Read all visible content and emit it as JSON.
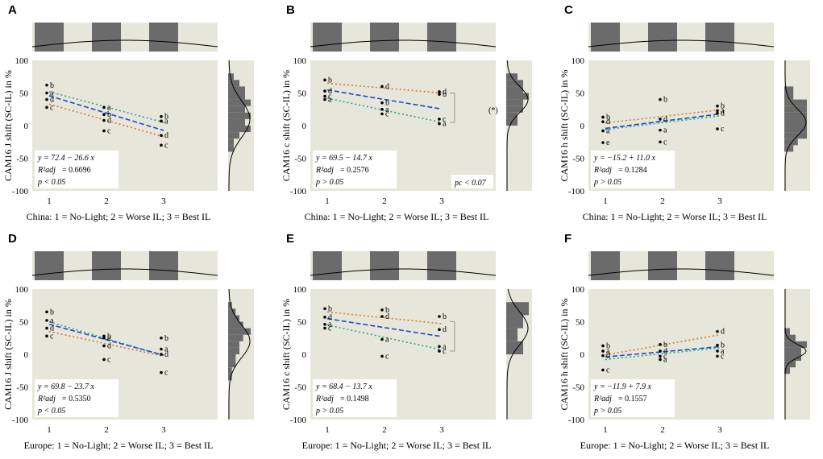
{
  "figure": {
    "colors": {
      "panel_bg": "#e6e6da",
      "hist_bar": "#6b6b6b",
      "series_a": "#2ca58d",
      "series_c": "#d9792b",
      "mean_line": "#2348c8",
      "point": "#000000"
    }
  },
  "chart_data": [
    {
      "id": "A",
      "type": "scatter",
      "ylabel": "CAM16 J shift (SC-IL) in %",
      "xlabel": "China: 1 = No-Light; 2 = Worse IL; 3 = Best IL",
      "ylim": [
        -100,
        100
      ],
      "yticks": [
        -100,
        -50,
        0,
        50,
        100
      ],
      "xticks": [
        1,
        2,
        3
      ],
      "points": [
        {
          "x": 1,
          "y": 62,
          "label": "b"
        },
        {
          "x": 1,
          "y": 50,
          "label": "a"
        },
        {
          "x": 1,
          "y": 40,
          "label": "d"
        },
        {
          "x": 1,
          "y": 28,
          "label": "c"
        },
        {
          "x": 2,
          "y": 28,
          "label": "a"
        },
        {
          "x": 2,
          "y": 17,
          "label": "b"
        },
        {
          "x": 2,
          "y": 8,
          "label": "d"
        },
        {
          "x": 2,
          "y": -8,
          "label": "c"
        },
        {
          "x": 3,
          "y": 14,
          "label": "b"
        },
        {
          "x": 3,
          "y": 7,
          "label": "a"
        },
        {
          "x": 3,
          "y": -15,
          "label": "d"
        },
        {
          "x": 3,
          "y": -30,
          "label": "c"
        }
      ],
      "trend_lines": [
        {
          "name": "a",
          "y1": 52,
          "y3": 5
        },
        {
          "name": "c",
          "y1": 33,
          "y3": -17
        }
      ],
      "fit": {
        "intercept": 72.4,
        "slope": -26.6
      },
      "eq_line1": "y = 72.4 − 26.6 x",
      "eq_r2_label": "R²adj",
      "eq_r2_value": "= 0.6696",
      "eq_p": "p < 0.05",
      "hist_bins": [
        {
          "lo": 70,
          "hi": 80,
          "count": 1
        },
        {
          "lo": 60,
          "hi": 70,
          "count": 2
        },
        {
          "lo": 50,
          "hi": 60,
          "count": 3
        },
        {
          "lo": 40,
          "hi": 50,
          "count": 3
        },
        {
          "lo": 30,
          "hi": 40,
          "count": 4
        },
        {
          "lo": 20,
          "hi": 30,
          "count": 3
        },
        {
          "lo": 10,
          "hi": 20,
          "count": 4
        },
        {
          "lo": 0,
          "hi": 10,
          "count": 3
        },
        {
          "lo": -10,
          "hi": 0,
          "count": 4
        },
        {
          "lo": -20,
          "hi": -10,
          "count": 2
        },
        {
          "lo": -30,
          "hi": -20,
          "count": 1
        },
        {
          "lo": -40,
          "hi": -30,
          "count": 1
        }
      ],
      "density": {
        "mean": 10,
        "sd": 28,
        "peak": 1.0
      }
    },
    {
      "id": "B",
      "type": "scatter",
      "ylabel": "CAM16 c shift (SC-IL) in %",
      "xlabel": "China: 1 = No-Light; 2 = Worse IL; 3 = Best IL",
      "ylim": [
        -100,
        100
      ],
      "yticks": [
        -100,
        -50,
        0,
        50,
        100
      ],
      "xticks": [
        1,
        2,
        3
      ],
      "points": [
        {
          "x": 1,
          "y": 70,
          "label": "b"
        },
        {
          "x": 1,
          "y": 53,
          "label": "d"
        },
        {
          "x": 1,
          "y": 45,
          "label": "c"
        },
        {
          "x": 1,
          "y": 40,
          "label": "a"
        },
        {
          "x": 2,
          "y": 60,
          "label": "d"
        },
        {
          "x": 2,
          "y": 35,
          "label": "b"
        },
        {
          "x": 2,
          "y": 25,
          "label": "a"
        },
        {
          "x": 2,
          "y": 18,
          "label": "c"
        },
        {
          "x": 3,
          "y": 52,
          "label": "d"
        },
        {
          "x": 3,
          "y": 48,
          "label": "b"
        },
        {
          "x": 3,
          "y": 10,
          "label": "c"
        },
        {
          "x": 3,
          "y": 3,
          "label": "a"
        }
      ],
      "trend_lines": [
        {
          "name": "c",
          "y1": 65,
          "y3": 50
        },
        {
          "name": "a",
          "y1": 42,
          "y3": 5
        }
      ],
      "fit": {
        "intercept": 69.5,
        "slope": -14.7
      },
      "eq_line1": "y = 69.5 − 14.7 x",
      "eq_r2_label": "R²adj",
      "eq_r2_value": "= 0.2576",
      "eq_p": "p > 0.05",
      "annotation_pc": "pc < 0.07",
      "annotation_star": "(*)",
      "hist_bins": [
        {
          "lo": 70,
          "hi": 80,
          "count": 2
        },
        {
          "lo": 60,
          "hi": 70,
          "count": 3
        },
        {
          "lo": 50,
          "hi": 60,
          "count": 3
        },
        {
          "lo": 40,
          "hi": 50,
          "count": 4
        },
        {
          "lo": 30,
          "hi": 40,
          "count": 3
        },
        {
          "lo": 20,
          "hi": 30,
          "count": 3
        },
        {
          "lo": 10,
          "hi": 20,
          "count": 2
        },
        {
          "lo": 0,
          "hi": 10,
          "count": 2
        }
      ],
      "density": {
        "mean": 40,
        "sd": 20,
        "peak": 1.0
      }
    },
    {
      "id": "C",
      "type": "scatter",
      "ylabel": "CAM16 h shift (SC-IL) in %",
      "xlabel": "China: 1 = No-Light; 2 = Worse IL; 3 = Best IL",
      "ylim": [
        -100,
        100
      ],
      "yticks": [
        -100,
        -50,
        0,
        50,
        100
      ],
      "xticks": [
        1,
        2,
        3
      ],
      "points": [
        {
          "x": 1,
          "y": 13,
          "label": "b"
        },
        {
          "x": 1,
          "y": 6,
          "label": "d"
        },
        {
          "x": 1,
          "y": -8,
          "label": "a"
        },
        {
          "x": 1,
          "y": -26,
          "label": "e"
        },
        {
          "x": 2,
          "y": 40,
          "label": "b"
        },
        {
          "x": 2,
          "y": 10,
          "label": "d"
        },
        {
          "x": 2,
          "y": -7,
          "label": "a"
        },
        {
          "x": 2,
          "y": -25,
          "label": "c"
        },
        {
          "x": 3,
          "y": 30,
          "label": "b"
        },
        {
          "x": 3,
          "y": 23,
          "label": "a"
        },
        {
          "x": 3,
          "y": 19,
          "label": "d"
        },
        {
          "x": 3,
          "y": -5,
          "label": "c"
        }
      ],
      "trend_lines": [
        {
          "name": "c",
          "y1": 4,
          "y3": 24
        },
        {
          "name": "a",
          "y1": -6,
          "y3": 15
        }
      ],
      "fit": {
        "intercept": -15.2,
        "slope": 11.0
      },
      "eq_line1": "y = −15.2 + 11.0 x",
      "eq_r2_label": "R²adj",
      "eq_r2_value": "= 0.1284",
      "eq_p": "p > 0.05",
      "hist_bins": [
        {
          "lo": 50,
          "hi": 60,
          "count": 2
        },
        {
          "lo": 40,
          "hi": 50,
          "count": 2
        },
        {
          "lo": 30,
          "hi": 40,
          "count": 5
        },
        {
          "lo": 20,
          "hi": 30,
          "count": 5
        },
        {
          "lo": 10,
          "hi": 20,
          "count": 5
        },
        {
          "lo": 0,
          "hi": 10,
          "count": 5
        },
        {
          "lo": -10,
          "hi": 0,
          "count": 5
        },
        {
          "lo": -20,
          "hi": -10,
          "count": 5
        },
        {
          "lo": -30,
          "hi": -20,
          "count": 3
        },
        {
          "lo": -40,
          "hi": -30,
          "count": 2
        }
      ],
      "density": {
        "mean": 5,
        "sd": 20,
        "peak": 1.0
      }
    },
    {
      "id": "D",
      "type": "scatter",
      "ylabel": "CAM16 J shift (SC-IL) in %",
      "xlabel": "Europe: 1 = No-Light; 2 = Worse IL; 3 = Best IL",
      "ylim": [
        -100,
        100
      ],
      "yticks": [
        -100,
        -50,
        0,
        50,
        100
      ],
      "xticks": [
        1,
        2,
        3
      ],
      "points": [
        {
          "x": 1,
          "y": 65,
          "label": "b"
        },
        {
          "x": 1,
          "y": 52,
          "label": "a"
        },
        {
          "x": 1,
          "y": 40,
          "label": "d"
        },
        {
          "x": 1,
          "y": 28,
          "label": "c"
        },
        {
          "x": 2,
          "y": 28,
          "label": "b"
        },
        {
          "x": 2,
          "y": 25,
          "label": "a"
        },
        {
          "x": 2,
          "y": 13,
          "label": "d"
        },
        {
          "x": 2,
          "y": -8,
          "label": "c"
        },
        {
          "x": 3,
          "y": 25,
          "label": "b"
        },
        {
          "x": 3,
          "y": 8,
          "label": "a"
        },
        {
          "x": 3,
          "y": 0,
          "label": "d"
        },
        {
          "x": 3,
          "y": -28,
          "label": "c"
        }
      ],
      "trend_lines": [
        {
          "name": "a",
          "y1": 50,
          "y3": -2
        },
        {
          "name": "c",
          "y1": 35,
          "y3": -3
        }
      ],
      "fit": {
        "intercept": 69.8,
        "slope": -23.7
      },
      "eq_line1": "y = 69.8 − 23.7 x",
      "eq_r2_label": "R²adj",
      "eq_r2_value": "= 0.5350",
      "eq_p": "p < 0.05",
      "hist_bins": [
        {
          "lo": 70,
          "hi": 80,
          "count": 1
        },
        {
          "lo": 60,
          "hi": 70,
          "count": 2
        },
        {
          "lo": 50,
          "hi": 60,
          "count": 3
        },
        {
          "lo": 40,
          "hi": 50,
          "count": 4
        },
        {
          "lo": 30,
          "hi": 40,
          "count": 6
        },
        {
          "lo": 20,
          "hi": 30,
          "count": 4
        },
        {
          "lo": 10,
          "hi": 20,
          "count": 3
        },
        {
          "lo": 0,
          "hi": 10,
          "count": 3
        },
        {
          "lo": -10,
          "hi": 0,
          "count": 2
        },
        {
          "lo": -20,
          "hi": -10,
          "count": 2
        },
        {
          "lo": -30,
          "hi": -20,
          "count": 1
        },
        {
          "lo": -40,
          "hi": -30,
          "count": 1
        }
      ],
      "density": {
        "mean": 20,
        "sd": 25,
        "peak": 1.0
      }
    },
    {
      "id": "E",
      "type": "scatter",
      "ylabel": "CAM16 c shift (SC-IL) in %",
      "xlabel": "Europe: 1 = No-Light; 2 = Worse IL; 3 = Best IL",
      "ylim": [
        -100,
        100
      ],
      "yticks": [
        -100,
        -50,
        0,
        50,
        100
      ],
      "xticks": [
        1,
        2,
        3
      ],
      "points": [
        {
          "x": 1,
          "y": 70,
          "label": "b"
        },
        {
          "x": 1,
          "y": 57,
          "label": "d"
        },
        {
          "x": 1,
          "y": 46,
          "label": "a"
        },
        {
          "x": 1,
          "y": 40,
          "label": "c"
        },
        {
          "x": 2,
          "y": 68,
          "label": "b"
        },
        {
          "x": 2,
          "y": 58,
          "label": "d"
        },
        {
          "x": 2,
          "y": 23,
          "label": "a"
        },
        {
          "x": 2,
          "y": -3,
          "label": "c"
        },
        {
          "x": 3,
          "y": 58,
          "label": "b"
        },
        {
          "x": 3,
          "y": 38,
          "label": "d"
        },
        {
          "x": 3,
          "y": 12,
          "label": "a"
        },
        {
          "x": 3,
          "y": 5,
          "label": "c"
        }
      ],
      "trend_lines": [
        {
          "name": "c",
          "y1": 65,
          "y3": 47
        },
        {
          "name": "a",
          "y1": 45,
          "y3": 7
        }
      ],
      "fit": {
        "intercept": 68.4,
        "slope": -13.7
      },
      "eq_line1": "y = 68.4 − 13.7 x",
      "eq_r2_label": "R²adj",
      "eq_r2_value": "= 0.1498",
      "eq_p": "p > 0.05",
      "hist_bins": [
        {
          "lo": 60,
          "hi": 80,
          "count": 4
        },
        {
          "lo": 40,
          "hi": 60,
          "count": 3
        },
        {
          "lo": 20,
          "hi": 40,
          "count": 2
        },
        {
          "lo": 0,
          "hi": 20,
          "count": 3
        }
      ],
      "density": {
        "mean": 40,
        "sd": 25,
        "peak": 1.0
      }
    },
    {
      "id": "F",
      "type": "scatter",
      "ylabel": "CAM16 h shift (SC-IL) in %",
      "xlabel": "Europe: 1 = No-Light; 2 = Worse IL; 3 = Best IL",
      "ylim": [
        -100,
        100
      ],
      "yticks": [
        -100,
        -50,
        0,
        50,
        100
      ],
      "xticks": [
        1,
        2,
        3
      ],
      "points": [
        {
          "x": 1,
          "y": 13,
          "label": "b"
        },
        {
          "x": 1,
          "y": 5,
          "label": "a"
        },
        {
          "x": 1,
          "y": -2,
          "label": "d"
        },
        {
          "x": 1,
          "y": -24,
          "label": "c"
        },
        {
          "x": 2,
          "y": 15,
          "label": "b"
        },
        {
          "x": 2,
          "y": 5,
          "label": "d"
        },
        {
          "x": 2,
          "y": -3,
          "label": "c"
        },
        {
          "x": 2,
          "y": -8,
          "label": "a"
        },
        {
          "x": 3,
          "y": 35,
          "label": "d"
        },
        {
          "x": 3,
          "y": 14,
          "label": "b"
        },
        {
          "x": 3,
          "y": 5,
          "label": "a"
        },
        {
          "x": 3,
          "y": -3,
          "label": "c"
        }
      ],
      "trend_lines": [
        {
          "name": "c",
          "y1": -1,
          "y3": 30
        },
        {
          "name": "a",
          "y1": -8,
          "y3": 10
        }
      ],
      "fit": {
        "intercept": -11.9,
        "slope": 7.9
      },
      "eq_line1": "y = −11.9 + 7.9 x",
      "eq_r2_label": "R²adj",
      "eq_r2_value": "= 0.1557",
      "eq_p": "p > 0.05",
      "hist_bins": [
        {
          "lo": 30,
          "hi": 40,
          "count": 1
        },
        {
          "lo": 20,
          "hi": 30,
          "count": 2
        },
        {
          "lo": 10,
          "hi": 20,
          "count": 4
        },
        {
          "lo": 0,
          "hi": 10,
          "count": 3
        },
        {
          "lo": -10,
          "hi": 0,
          "count": 3
        },
        {
          "lo": -20,
          "hi": -10,
          "count": 2
        },
        {
          "lo": -30,
          "hi": -20,
          "count": 1
        }
      ],
      "density": {
        "mean": 5,
        "sd": 10,
        "peak": 1.0
      }
    }
  ]
}
